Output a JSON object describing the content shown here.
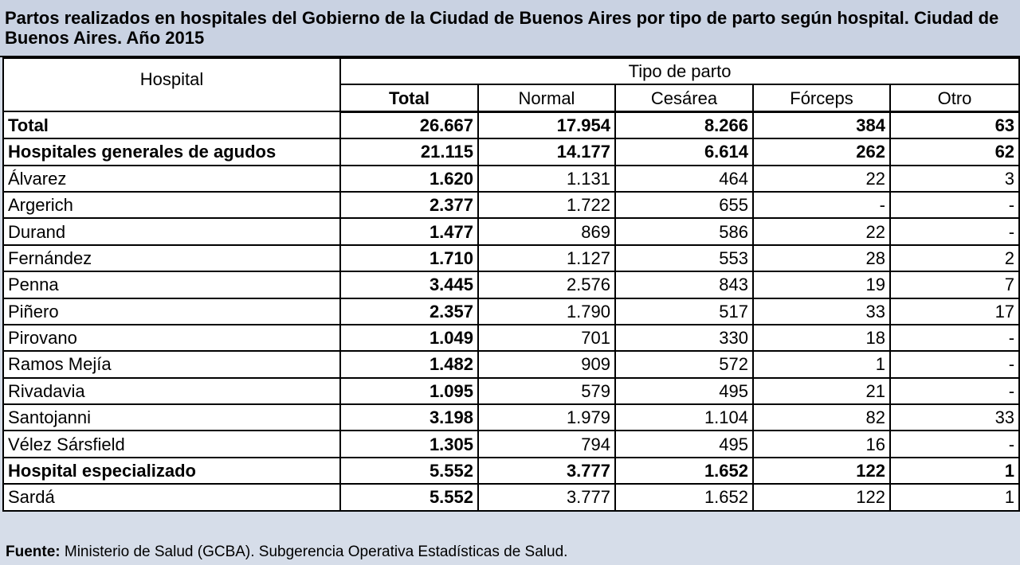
{
  "title": "Partos realizados en hospitales del Gobierno de la Ciudad de Buenos Aires por tipo de parto según hospital. Ciudad de Buenos Aires. Año 2015",
  "headers": {
    "hospital": "Hospital",
    "group": "Tipo de parto",
    "total": "Total",
    "normal": "Normal",
    "cesarea": "Cesárea",
    "forceps": "Fórceps",
    "otro": "Otro"
  },
  "rows": [
    {
      "name": "Total",
      "bold": true,
      "total": "26.667",
      "normal": "17.954",
      "cesarea": "8.266",
      "forceps": "384",
      "otro": "63"
    },
    {
      "name": "Hospitales generales de agudos",
      "bold": true,
      "total": "21.115",
      "normal": "14.177",
      "cesarea": "6.614",
      "forceps": "262",
      "otro": "62"
    },
    {
      "name": "Álvarez",
      "bold": false,
      "total": "1.620",
      "normal": "1.131",
      "cesarea": "464",
      "forceps": "22",
      "otro": "3"
    },
    {
      "name": "Argerich",
      "bold": false,
      "total": "2.377",
      "normal": "1.722",
      "cesarea": "655",
      "forceps": "-",
      "otro": "-"
    },
    {
      "name": "Durand",
      "bold": false,
      "total": "1.477",
      "normal": "869",
      "cesarea": "586",
      "forceps": "22",
      "otro": "-"
    },
    {
      "name": "Fernández",
      "bold": false,
      "total": "1.710",
      "normal": "1.127",
      "cesarea": "553",
      "forceps": "28",
      "otro": "2"
    },
    {
      "name": "Penna",
      "bold": false,
      "total": "3.445",
      "normal": "2.576",
      "cesarea": "843",
      "forceps": "19",
      "otro": "7"
    },
    {
      "name": "Piñero",
      "bold": false,
      "total": "2.357",
      "normal": "1.790",
      "cesarea": "517",
      "forceps": "33",
      "otro": "17"
    },
    {
      "name": "Pirovano",
      "bold": false,
      "total": "1.049",
      "normal": "701",
      "cesarea": "330",
      "forceps": "18",
      "otro": "-"
    },
    {
      "name": "Ramos Mejía",
      "bold": false,
      "total": "1.482",
      "normal": "909",
      "cesarea": "572",
      "forceps": "1",
      "otro": "-"
    },
    {
      "name": "Rivadavia",
      "bold": false,
      "total": "1.095",
      "normal": "579",
      "cesarea": "495",
      "forceps": "21",
      "otro": "-"
    },
    {
      "name": "Santojanni",
      "bold": false,
      "total": "3.198",
      "normal": "1.979",
      "cesarea": "1.104",
      "forceps": "82",
      "otro": "33"
    },
    {
      "name": "Vélez Sársfield",
      "bold": false,
      "total": "1.305",
      "normal": "794",
      "cesarea": "495",
      "forceps": "16",
      "otro": "-"
    },
    {
      "name": "Hospital  especializado",
      "bold": true,
      "total": "5.552",
      "normal": "3.777",
      "cesarea": "1.652",
      "forceps": "122",
      "otro": "1"
    },
    {
      "name": "Sardá",
      "bold": false,
      "total": "5.552",
      "normal": "3.777",
      "cesarea": "1.652",
      "forceps": "122",
      "otro": "1"
    }
  ],
  "footer": {
    "label": "Fuente:",
    "text": " Ministerio de Salud (GCBA). Subgerencia Operativa Estadísticas de Salud."
  }
}
